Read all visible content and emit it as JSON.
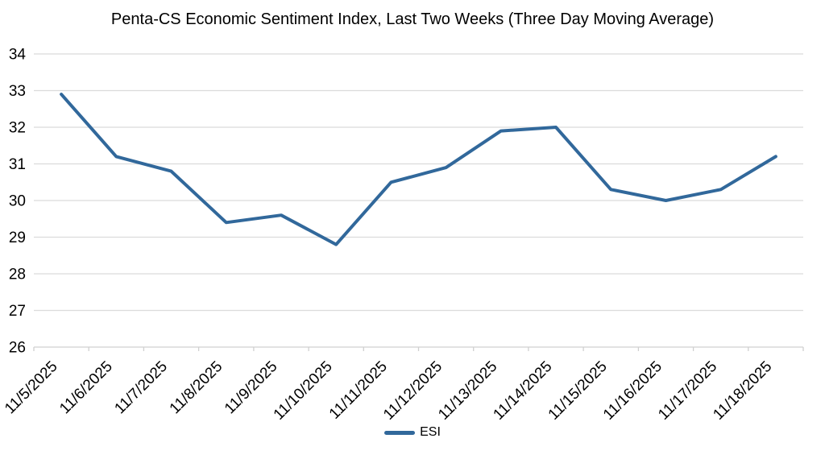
{
  "page": {
    "background": "#FFFFFF"
  },
  "chart_data": {
    "type": "line",
    "title": "Penta-CS Economic Sentiment Index, Last Two Weeks (Three Day Moving Average)",
    "categories": [
      "11/5/2025",
      "11/6/2025",
      "11/7/2025",
      "11/8/2025",
      "11/9/2025",
      "11/10/2025",
      "11/11/2025",
      "11/12/2025",
      "11/13/2025",
      "11/14/2025",
      "11/15/2025",
      "11/16/2025",
      "11/17/2025",
      "11/18/2025"
    ],
    "series": [
      {
        "name": "ESI",
        "color": "#31689B",
        "values": [
          32.9,
          31.2,
          30.8,
          29.4,
          29.6,
          28.8,
          30.5,
          30.9,
          31.9,
          32.0,
          30.3,
          30.0,
          30.3,
          31.2
        ]
      }
    ],
    "xlabel": "",
    "ylabel": "",
    "ylim": [
      26,
      34
    ],
    "ytick_step": 1,
    "grid": "horizontal",
    "gridline_color": "#DBDBDB",
    "axis_color": "#D0D0D0",
    "text_color": "#000000",
    "legend_position": "bottom"
  }
}
